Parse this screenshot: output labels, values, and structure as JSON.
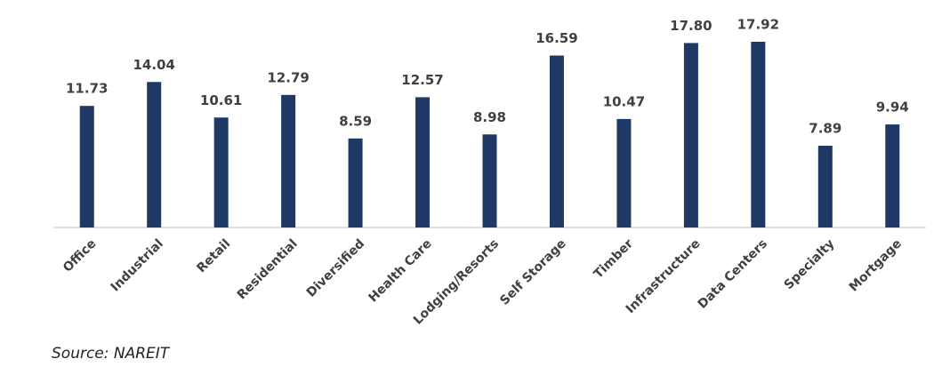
{
  "chart_data": {
    "type": "bar",
    "categories": [
      "Office",
      "Industrial",
      "Retail",
      "Residential",
      "Diversified",
      "Health Care",
      "Lodging/Resorts",
      "Self Storage",
      "Timber",
      "Infrastructure",
      "Data Centers",
      "Specialty",
      "Mortgage"
    ],
    "values": [
      11.73,
      14.04,
      10.61,
      12.79,
      8.59,
      12.57,
      8.98,
      16.59,
      10.47,
      17.8,
      17.92,
      7.89,
      9.94
    ],
    "value_labels": [
      "11.73",
      "14.04",
      "10.61",
      "12.79",
      "8.59",
      "12.57",
      "8.98",
      "16.59",
      "10.47",
      "17.80",
      "17.92",
      "7.89",
      "9.94"
    ],
    "color": "#1f3864",
    "source": "Source: NAREIT"
  }
}
